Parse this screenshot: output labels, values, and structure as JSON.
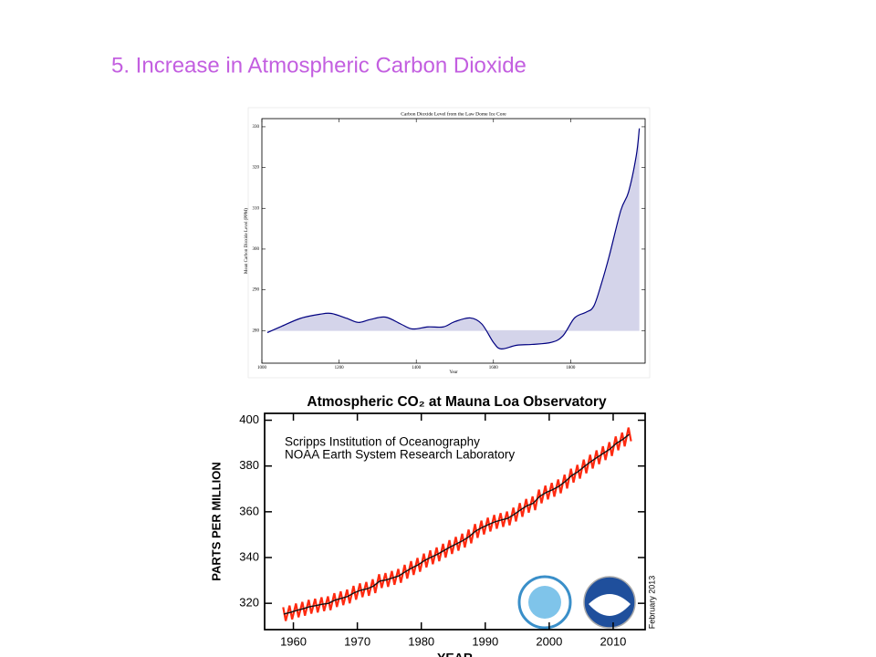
{
  "slide_title": "5. Increase in Atmospheric Carbon Dioxide",
  "chart_data": [
    {
      "type": "area",
      "title": "Carbon Dioxide Level from the Law Dome Ice Core",
      "xlabel": "Year",
      "ylabel": "Mean Carbon Dioxide Level (PPM)",
      "smooth": true,
      "xlim": [
        1000,
        1993
      ],
      "xticks": [
        1000,
        1200,
        1400,
        1600,
        1800
      ],
      "ylim": [
        272,
        332
      ],
      "yticks": [
        280,
        290,
        300,
        310,
        320,
        330
      ],
      "baseline": 280,
      "color": "#000080",
      "fill": "#d4d4ea",
      "x": [
        1014,
        1050,
        1100,
        1150,
        1180,
        1220,
        1250,
        1280,
        1320,
        1360,
        1390,
        1430,
        1470,
        1500,
        1540,
        1570,
        1600,
        1620,
        1660,
        1700,
        1750,
        1780,
        1810,
        1840,
        1860,
        1880,
        1900,
        1930,
        1950,
        1970,
        1978
      ],
      "values": [
        279.5,
        281,
        283,
        284,
        284.2,
        283,
        282,
        282.7,
        283.3,
        281.6,
        280.4,
        280.9,
        280.9,
        282.2,
        283.1,
        281.6,
        277.1,
        275.5,
        276.4,
        276.6,
        277.1,
        278.7,
        283.1,
        284.5,
        286,
        291.6,
        298.3,
        309.5,
        314,
        322.9,
        329.6
      ]
    },
    {
      "type": "line",
      "title": "Atmospheric CO₂ at Mauna Loa Observatory",
      "xlabel": "YEAR",
      "ylabel": "PARTS PER MILLION",
      "annotations": [
        "Scripps Institution of Oceanography",
        "NOAA Earth System Research Laboratory",
        "February 2013"
      ],
      "xlim": [
        1955.5,
        2015
      ],
      "xticks": [
        1960,
        1970,
        1980,
        1990,
        2000,
        2010
      ],
      "ylim": [
        308.5,
        403
      ],
      "yticks": [
        320,
        340,
        360,
        380,
        400
      ],
      "series": [
        {
          "color": "#ff2a10",
          "x": [
            1958.4,
            1958.8,
            1959.4,
            1959.8,
            1960.4,
            1960.8,
            1961.4,
            1961.8,
            1962.4,
            1962.8,
            1963.4,
            1963.8,
            1964.4,
            1964.8,
            1965.4,
            1965.8,
            1966.4,
            1966.8,
            1967.4,
            1967.8,
            1968.4,
            1968.8,
            1969.4,
            1969.8,
            1970.4,
            1970.8,
            1971.4,
            1971.8,
            1972.4,
            1972.8,
            1973.4,
            1973.8,
            1974.4,
            1974.8,
            1975.4,
            1975.8,
            1976.4,
            1976.8,
            1977.4,
            1977.8,
            1978.4,
            1978.8,
            1979.4,
            1979.8,
            1980.4,
            1980.8,
            1981.4,
            1981.8,
            1982.4,
            1982.8,
            1983.4,
            1983.8,
            1984.4,
            1984.8,
            1985.4,
            1985.8,
            1986.4,
            1986.8,
            1987.4,
            1987.8,
            1988.4,
            1988.8,
            1989.4,
            1989.8,
            1990.4,
            1990.8,
            1991.4,
            1991.8,
            1992.4,
            1992.8,
            1993.4,
            1993.8,
            1994.4,
            1994.8,
            1995.4,
            1995.8,
            1996.4,
            1996.8,
            1997.4,
            1997.8,
            1998.4,
            1998.8,
            1999.4,
            1999.8,
            2000.4,
            2000.8,
            2001.4,
            2001.8,
            2002.4,
            2002.8,
            2003.4,
            2003.8,
            2004.4,
            2004.8,
            2005.4,
            2005.8,
            2006.4,
            2006.8,
            2007.4,
            2007.8,
            2008.4,
            2008.8,
            2009.4,
            2009.8,
            2010.4,
            2010.8,
            2011.4,
            2011.8,
            2012.4,
            2012.8
          ],
          "values": [
            318.3,
            312.3,
            319.0,
            313.0,
            319.9,
            313.9,
            320.6,
            314.6,
            321.5,
            315.5,
            322.0,
            316.0,
            322.6,
            316.6,
            323.0,
            317.0,
            324.4,
            318.4,
            325.2,
            319.2,
            326.0,
            320.0,
            327.6,
            321.6,
            328.7,
            322.7,
            329.3,
            323.3,
            330.5,
            324.5,
            332.7,
            326.7,
            333.2,
            327.2,
            334.1,
            328.1,
            335.0,
            329.0,
            336.8,
            330.8,
            338.4,
            332.4,
            339.8,
            333.8,
            341.7,
            335.7,
            343.1,
            337.1,
            344.4,
            338.4,
            346.0,
            340.0,
            347.6,
            341.6,
            349.0,
            343.0,
            350.4,
            344.4,
            352.2,
            346.2,
            354.6,
            348.6,
            356.1,
            350.1,
            357.4,
            351.4,
            358.6,
            352.6,
            359.4,
            353.4,
            360.1,
            354.1,
            361.8,
            355.8,
            363.8,
            357.8,
            365.6,
            359.6,
            366.7,
            360.7,
            369.7,
            363.7,
            371.4,
            365.4,
            372.6,
            366.6,
            374.1,
            368.1,
            376.2,
            370.2,
            378.8,
            372.8,
            380.5,
            374.5,
            382.8,
            376.8,
            384.9,
            378.9,
            386.8,
            380.8,
            388.6,
            382.6,
            390.4,
            384.4,
            392.9,
            386.9,
            394.6,
            388.6,
            396.8,
            390.8
          ]
        },
        {
          "color": "#111111",
          "x": [
            1958.5,
            1959.5,
            1960.5,
            1961.5,
            1962.5,
            1963.5,
            1964.5,
            1965.5,
            1966.5,
            1967.5,
            1968.5,
            1969.5,
            1970.5,
            1971.5,
            1972.5,
            1973.5,
            1974.5,
            1975.5,
            1976.5,
            1977.5,
            1978.5,
            1979.5,
            1980.5,
            1981.5,
            1982.5,
            1983.5,
            1984.5,
            1985.5,
            1986.5,
            1987.5,
            1988.5,
            1989.5,
            1990.5,
            1991.5,
            1992.5,
            1993.5,
            1994.5,
            1995.5,
            1996.5,
            1997.5,
            1998.5,
            1999.5,
            2000.5,
            2001.5,
            2002.5,
            2003.5,
            2004.5,
            2005.5,
            2006.5,
            2007.5,
            2008.5,
            2009.5,
            2010.5,
            2011.5,
            2012.5
          ],
          "values": [
            315.3,
            316.0,
            316.9,
            317.6,
            318.5,
            319.0,
            319.6,
            320.0,
            321.4,
            322.2,
            323.0,
            324.6,
            325.7,
            326.3,
            327.5,
            329.7,
            330.2,
            331.1,
            332.0,
            333.8,
            335.4,
            336.8,
            338.7,
            340.1,
            341.4,
            343.0,
            344.6,
            346.0,
            347.4,
            349.2,
            351.6,
            353.1,
            354.4,
            355.6,
            356.4,
            357.1,
            358.8,
            360.8,
            362.6,
            363.7,
            366.7,
            368.4,
            369.6,
            371.1,
            373.2,
            375.8,
            377.5,
            379.8,
            381.9,
            383.8,
            385.6,
            387.4,
            389.9,
            391.6,
            393.8
          ]
        }
      ]
    }
  ]
}
